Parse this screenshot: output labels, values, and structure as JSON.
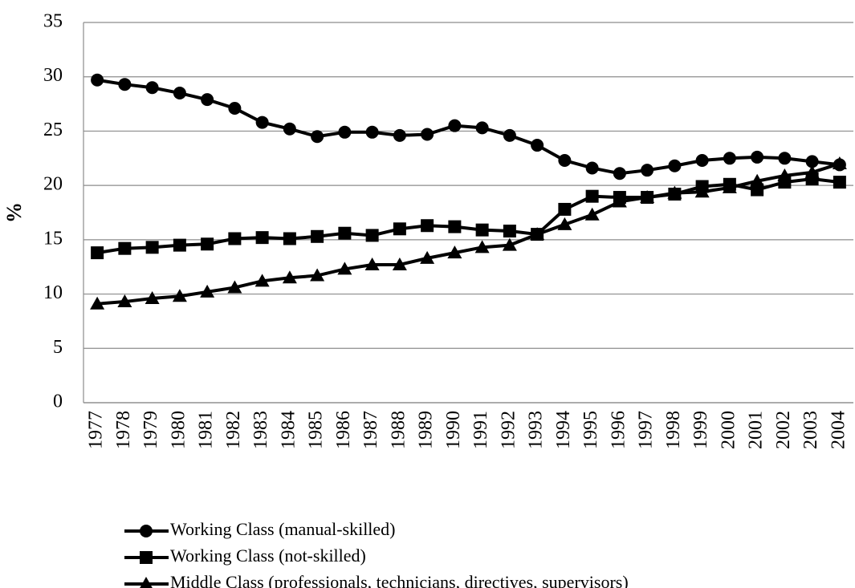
{
  "chart_data": {
    "type": "line",
    "y_label": "%",
    "categories": [
      "1977",
      "1978",
      "1979",
      "1980",
      "1981",
      "1982",
      "1983",
      "1984",
      "1985",
      "1986",
      "1987",
      "1988",
      "1989",
      "1990",
      "1991",
      "1992",
      "1993",
      "1994",
      "1995",
      "1996",
      "1997",
      "1998",
      "1999",
      "2000",
      "2001",
      "2002",
      "2003",
      "2004"
    ],
    "series": [
      {
        "name": "Working Class (manual-skilled)",
        "color": "#000000",
        "marker": "circle",
        "values": [
          29.7,
          29.3,
          29.0,
          28.5,
          27.9,
          27.1,
          25.8,
          25.2,
          24.5,
          24.9,
          24.9,
          24.6,
          24.7,
          25.5,
          25.3,
          24.6,
          23.7,
          22.3,
          21.6,
          21.1,
          21.4,
          21.8,
          22.3,
          22.5,
          22.6,
          22.5,
          22.2,
          21.9
        ]
      },
      {
        "name": "Working Class (not-skilled)",
        "color": "#000000",
        "marker": "square",
        "values": [
          13.8,
          14.2,
          14.3,
          14.5,
          14.6,
          15.1,
          15.2,
          15.1,
          15.3,
          15.6,
          15.4,
          16.0,
          16.3,
          16.2,
          15.9,
          15.8,
          15.5,
          17.8,
          19.0,
          18.9,
          18.9,
          19.2,
          19.9,
          20.1,
          19.6,
          20.3,
          20.6,
          20.3
        ]
      },
      {
        "name": "Middle Class (professionals, technicians, directives, supervisors)",
        "color": "#000000",
        "marker": "triangle",
        "values": [
          9.1,
          9.3,
          9.6,
          9.8,
          10.2,
          10.6,
          11.2,
          11.5,
          11.7,
          12.3,
          12.7,
          12.7,
          13.3,
          13.8,
          14.3,
          14.5,
          15.5,
          16.4,
          17.3,
          18.5,
          18.9,
          19.3,
          19.4,
          19.8,
          20.4,
          20.9,
          21.2,
          22.0
        ]
      }
    ],
    "ylim": [
      0,
      35
    ],
    "yticks": [
      0,
      5,
      10,
      15,
      20,
      25,
      30,
      35
    ],
    "grid": true,
    "legend": "bottom"
  }
}
